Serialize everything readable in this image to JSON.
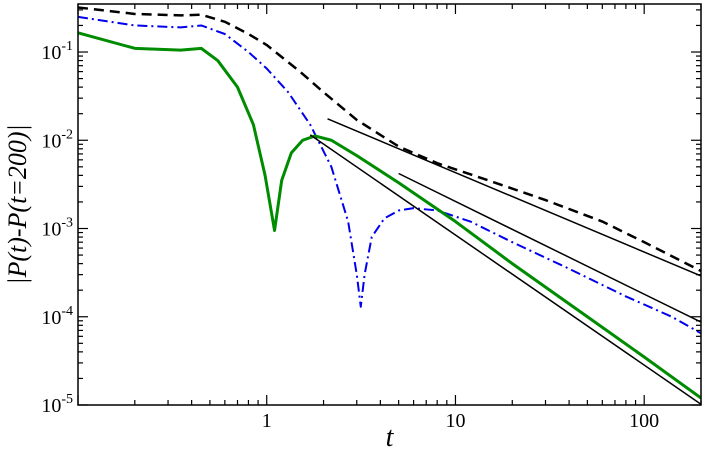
{
  "chart_data": {
    "type": "line",
    "title": "",
    "xlabel": "t",
    "ylabel": "|P(t)-P(t=200)|",
    "xscale": "log",
    "yscale": "log",
    "xlim": [
      0.1,
      200
    ],
    "ylim": [
      1e-05,
      0.35
    ],
    "grid": false,
    "legend": "none",
    "x_ticks": [
      {
        "value": 1,
        "label": "1"
      },
      {
        "value": 10,
        "label": "10"
      },
      {
        "value": 100,
        "label": "100"
      }
    ],
    "y_ticks": [
      {
        "value": 0.1,
        "base": "10",
        "exp": "-1"
      },
      {
        "value": 0.01,
        "base": "10",
        "exp": "-2"
      },
      {
        "value": 0.001,
        "base": "10",
        "exp": "-3"
      },
      {
        "value": 0.0001,
        "base": "10",
        "exp": "-4"
      },
      {
        "value": 1e-05,
        "base": "10",
        "exp": "-5"
      }
    ],
    "series": [
      {
        "style": "dashed",
        "color": "#000000",
        "width": 2.5,
        "points": [
          [
            0.1,
            0.32
          ],
          [
            0.2,
            0.27
          ],
          [
            0.35,
            0.26
          ],
          [
            0.45,
            0.265
          ],
          [
            0.6,
            0.22
          ],
          [
            0.8,
            0.16
          ],
          [
            1.0,
            0.12
          ],
          [
            1.5,
            0.06
          ],
          [
            2.0,
            0.035
          ],
          [
            3.0,
            0.017
          ],
          [
            5.0,
            0.0085
          ],
          [
            8.0,
            0.0055
          ],
          [
            15.0,
            0.0035
          ],
          [
            30.0,
            0.0021
          ],
          [
            60.0,
            0.0012
          ],
          [
            100.0,
            0.0007
          ],
          [
            200.0,
            0.00033
          ]
        ]
      },
      {
        "style": "dashdot",
        "color": "#0000ee",
        "width": 2,
        "points": [
          [
            0.1,
            0.25
          ],
          [
            0.2,
            0.2
          ],
          [
            0.35,
            0.19
          ],
          [
            0.45,
            0.2
          ],
          [
            0.6,
            0.16
          ],
          [
            0.8,
            0.1
          ],
          [
            1.0,
            0.065
          ],
          [
            1.3,
            0.035
          ],
          [
            1.7,
            0.015
          ],
          [
            2.2,
            0.005
          ],
          [
            2.7,
            0.0012
          ],
          [
            3.0,
            0.0003
          ],
          [
            3.15,
            0.00013
          ],
          [
            3.3,
            0.0003
          ],
          [
            3.6,
            0.0008
          ],
          [
            4.2,
            0.0013
          ],
          [
            5.0,
            0.0016
          ],
          [
            6.0,
            0.0017
          ],
          [
            8.0,
            0.0016
          ],
          [
            12.0,
            0.0012
          ],
          [
            20.0,
            0.0007
          ],
          [
            40.0,
            0.00035
          ],
          [
            80.0,
            0.00017
          ],
          [
            140.0,
            0.0001
          ],
          [
            200.0,
            6.5e-05
          ]
        ]
      },
      {
        "style": "solid",
        "color": "#008c00",
        "width": 3,
        "points": [
          [
            0.1,
            0.165
          ],
          [
            0.2,
            0.11
          ],
          [
            0.35,
            0.105
          ],
          [
            0.45,
            0.11
          ],
          [
            0.55,
            0.08
          ],
          [
            0.7,
            0.04
          ],
          [
            0.85,
            0.015
          ],
          [
            0.98,
            0.004
          ],
          [
            1.1,
            0.00095
          ],
          [
            1.2,
            0.0035
          ],
          [
            1.35,
            0.0072
          ],
          [
            1.55,
            0.01
          ],
          [
            1.8,
            0.0112
          ],
          [
            2.2,
            0.01
          ],
          [
            3.0,
            0.0067
          ],
          [
            5.0,
            0.0033
          ],
          [
            10.0,
            0.0012
          ],
          [
            20.0,
            0.0004
          ],
          [
            50.0,
            0.0001
          ],
          [
            100.0,
            3.5e-05
          ],
          [
            200.0,
            1.2e-05
          ]
        ]
      },
      {
        "style": "solid",
        "color": "#000000",
        "width": 1.5,
        "points": [
          [
            2.1,
            0.0175
          ],
          [
            200.0,
            0.00029
          ]
        ]
      },
      {
        "style": "solid",
        "color": "#000000",
        "width": 1.5,
        "points": [
          [
            5.0,
            0.0042
          ],
          [
            200.0,
            8.7e-05
          ]
        ]
      },
      {
        "style": "solid",
        "color": "#000000",
        "width": 1.5,
        "points": [
          [
            1.7,
            0.0115
          ],
          [
            200.0,
            1.02e-05
          ]
        ]
      }
    ]
  }
}
